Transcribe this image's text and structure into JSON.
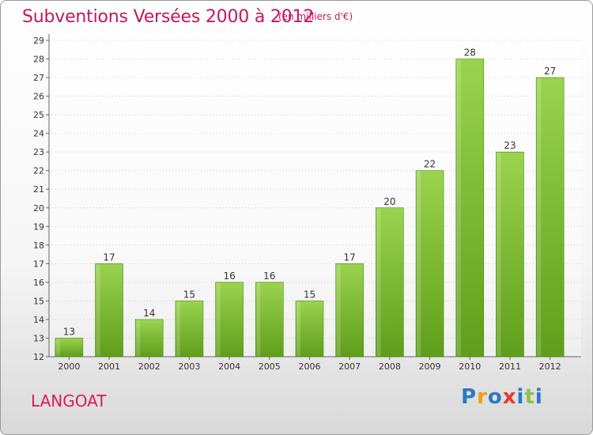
{
  "header": {
    "title": "Subventions Versées 2000 à 2012",
    "subtitle": "(en milliers d'€)"
  },
  "footer": {
    "city": "LANGOAT",
    "logo_letters": [
      "P",
      "r",
      "o",
      "x",
      "i",
      "t",
      "i"
    ]
  },
  "colors": {
    "accent": "#c2185b",
    "bar_top": "#9ad34f",
    "bar_bottom": "#5f9e1c",
    "logo": [
      "#2b78c4",
      "#f39c12",
      "#2b78c4",
      "#e53935",
      "#2b78c4",
      "#8bc34a",
      "#2b78c4"
    ]
  },
  "chart_data": {
    "type": "bar",
    "categories": [
      "2000",
      "2001",
      "2002",
      "2003",
      "2004",
      "2005",
      "2006",
      "2007",
      "2008",
      "2009",
      "2010",
      "2011",
      "2012"
    ],
    "values": [
      13,
      17,
      14,
      15,
      16,
      16,
      15,
      17,
      20,
      22,
      28,
      23,
      27
    ],
    "title": "Subventions Versées 2000 à 2012",
    "xlabel": "",
    "ylabel": "",
    "ylim": [
      12,
      29
    ],
    "yticks": [
      12,
      13,
      14,
      15,
      16,
      17,
      18,
      19,
      20,
      21,
      22,
      23,
      24,
      25,
      26,
      27,
      28,
      29
    ],
    "grid": true,
    "legend": "none"
  }
}
